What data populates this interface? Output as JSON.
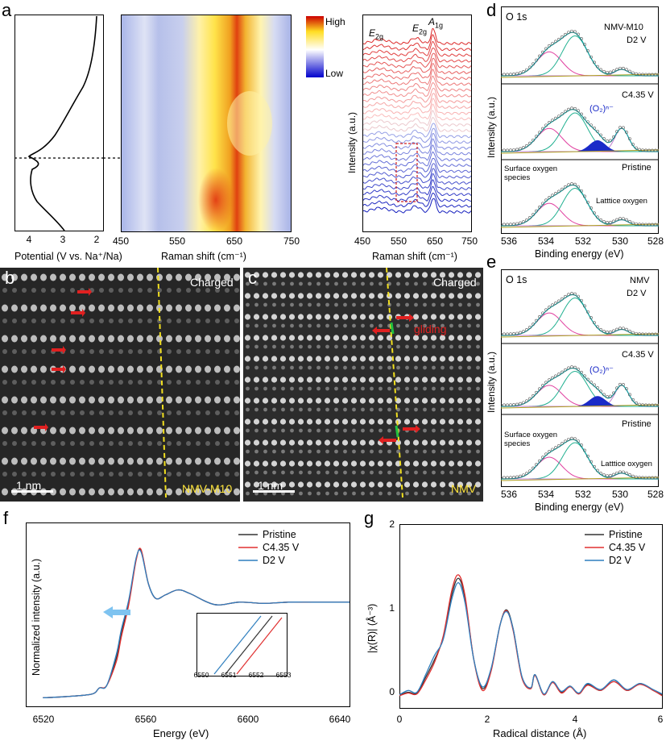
{
  "panel_labels": {
    "a": "a",
    "b": "b",
    "c": "c",
    "d": "d",
    "e": "e",
    "f": "f",
    "g": "g"
  },
  "panel_a": {
    "potential_axis": {
      "label": "Potential (V vs. Na⁺/Na)",
      "ticks": [
        "4",
        "3",
        "2"
      ]
    },
    "map_axis": {
      "label": "Raman shift (cm⁻¹)",
      "ticks": [
        "450",
        "550",
        "650",
        "750"
      ]
    },
    "colorbar": {
      "high": "High",
      "low": "Low",
      "colors": [
        "#cc0000",
        "#ffff33",
        "#ffffff",
        "#0000cc"
      ]
    },
    "raman_axis": {
      "label": "Raman shift (cm⁻¹)",
      "ticks": [
        "450",
        "550",
        "650",
        "750"
      ],
      "ylabel": "Intensity (a.u.)"
    },
    "peaks": [
      {
        "sym": "E",
        "sub": "2g"
      },
      {
        "sym": "E",
        "sub": "2g"
      },
      {
        "sym": "A",
        "sub": "1g"
      }
    ]
  },
  "panel_b": {
    "status": "Charged",
    "scale": "1 nm",
    "sample": "NMV-M10"
  },
  "panel_c": {
    "status": "Charged",
    "scale": "1 nm",
    "sample": "NMV",
    "annotation": "gliding"
  },
  "panel_d": {
    "title": "O 1s",
    "ylabel": "Intensity (a.u.)",
    "xlabel": "Binding energy (eV)",
    "ticks": [
      "536",
      "534",
      "532",
      "530",
      "528"
    ],
    "sample": "NMV-M10",
    "rows": [
      {
        "label": "D2 V"
      },
      {
        "label": "C4.35 V",
        "peak": "(O₂)ⁿ⁻"
      },
      {
        "label": "Pristine",
        "surface": "Surface oxygen species",
        "lattice": "Latttice oxygen"
      }
    ]
  },
  "panel_e": {
    "title": "O 1s",
    "ylabel": "Intensity (a.u.)",
    "xlabel": "Binding energy (eV)",
    "ticks": [
      "536",
      "534",
      "532",
      "530",
      "528"
    ],
    "sample": "NMV",
    "rows": [
      {
        "label": "D2 V"
      },
      {
        "label": "C4.35 V",
        "peak": "(O₂)ⁿ⁻"
      },
      {
        "label": "Pristine",
        "surface": "Surface oxygen species",
        "lattice": "Latttice oxygen"
      }
    ]
  },
  "panel_f": {
    "xlabel": "Energy (eV)",
    "ylabel": "Normalized intensity (a.u.)",
    "xticks": [
      "6520",
      "6560",
      "6600",
      "6640"
    ],
    "inset_ticks": [
      "6550",
      "6551",
      "6552",
      "6553"
    ],
    "legend": [
      {
        "name": "Pristine",
        "color": "#333333"
      },
      {
        "name": "C4.35 V",
        "color": "#e03030"
      },
      {
        "name": "D2 V",
        "color": "#2f7fbf"
      }
    ]
  },
  "chart_data": [
    {
      "type": "line",
      "title": "f",
      "xlabel": "Energy (eV)",
      "ylabel": "Normalized intensity (a.u.)",
      "xlim": [
        6520,
        6645
      ],
      "series": [
        {
          "name": "Pristine",
          "x": [
            6520,
            6530,
            6540,
            6543,
            6546,
            6550,
            6552,
            6555,
            6558,
            6560,
            6563,
            6566,
            6570,
            6575,
            6580,
            6590,
            6600,
            6610,
            6620,
            6630,
            6645
          ],
          "values": [
            0.02,
            0.03,
            0.05,
            0.1,
            0.12,
            0.35,
            0.55,
            0.8,
            1.15,
            1.22,
            0.95,
            0.83,
            0.86,
            0.9,
            0.87,
            0.78,
            0.8,
            0.79,
            0.8,
            0.8,
            0.8
          ]
        },
        {
          "name": "C4.35 V",
          "x": [
            6520,
            6530,
            6540,
            6543,
            6546,
            6550,
            6552,
            6555,
            6558,
            6560,
            6563,
            6566,
            6570,
            6575,
            6580,
            6590,
            6600,
            6610,
            6620,
            6630,
            6645
          ],
          "values": [
            0.02,
            0.03,
            0.05,
            0.1,
            0.12,
            0.32,
            0.52,
            0.78,
            1.14,
            1.23,
            0.95,
            0.83,
            0.86,
            0.9,
            0.87,
            0.78,
            0.8,
            0.79,
            0.8,
            0.8,
            0.8
          ]
        },
        {
          "name": "D2 V",
          "x": [
            6520,
            6530,
            6540,
            6543,
            6546,
            6550,
            6552,
            6555,
            6558,
            6560,
            6563,
            6566,
            6570,
            6575,
            6580,
            6590,
            6600,
            6610,
            6620,
            6630,
            6645
          ],
          "values": [
            0.02,
            0.03,
            0.05,
            0.1,
            0.12,
            0.38,
            0.58,
            0.82,
            1.16,
            1.21,
            0.95,
            0.83,
            0.86,
            0.9,
            0.87,
            0.78,
            0.8,
            0.79,
            0.8,
            0.8,
            0.8
          ]
        }
      ]
    },
    {
      "type": "line",
      "title": "g",
      "xlabel": "Radical distance (Å)",
      "ylabel": "|χ(R)| (Å⁻³)",
      "xlim": [
        0,
        6
      ],
      "ylim": [
        -0.1,
        2
      ],
      "xticks": [
        "0",
        "2",
        "4",
        "6"
      ],
      "yticks": [
        "0",
        "1",
        "2"
      ],
      "series": [
        {
          "name": "Pristine",
          "x": [
            0,
            0.2,
            0.4,
            0.6,
            0.8,
            1.0,
            1.2,
            1.35,
            1.5,
            1.7,
            1.9,
            2.1,
            2.3,
            2.45,
            2.6,
            2.8,
            3.0,
            3.1,
            3.3,
            3.5,
            3.7,
            3.9,
            4.1,
            4.3,
            4.6,
            4.9,
            5.2,
            5.5,
            5.8,
            6.0
          ],
          "values": [
            0.05,
            0.08,
            0.07,
            0.25,
            0.45,
            0.7,
            1.2,
            1.38,
            1.15,
            0.45,
            0.12,
            0.35,
            0.85,
            1.02,
            0.8,
            0.25,
            0.12,
            0.28,
            0.05,
            0.2,
            0.08,
            0.15,
            0.06,
            0.17,
            0.1,
            0.22,
            0.1,
            0.18,
            0.1,
            0.05
          ]
        },
        {
          "name": "C4.35 V",
          "x": [
            0,
            0.2,
            0.4,
            0.6,
            0.8,
            1.0,
            1.2,
            1.35,
            1.5,
            1.7,
            1.9,
            2.1,
            2.3,
            2.45,
            2.6,
            2.8,
            3.0,
            3.1,
            3.3,
            3.5,
            3.7,
            3.9,
            4.1,
            4.3,
            4.6,
            4.9,
            5.2,
            5.5,
            5.8,
            6.0
          ],
          "values": [
            0.04,
            0.07,
            0.06,
            0.22,
            0.42,
            0.72,
            1.25,
            1.42,
            1.18,
            0.45,
            0.1,
            0.33,
            0.85,
            1.01,
            0.78,
            0.24,
            0.12,
            0.27,
            0.05,
            0.19,
            0.07,
            0.14,
            0.06,
            0.16,
            0.1,
            0.2,
            0.1,
            0.17,
            0.1,
            0.04
          ]
        },
        {
          "name": "D2 V",
          "x": [
            0,
            0.2,
            0.4,
            0.6,
            0.8,
            1.0,
            1.2,
            1.35,
            1.5,
            1.7,
            1.9,
            2.1,
            2.3,
            2.45,
            2.6,
            2.8,
            3.0,
            3.1,
            3.3,
            3.5,
            3.7,
            3.9,
            4.1,
            4.3,
            4.6,
            4.9,
            5.2,
            5.5,
            5.8,
            6.0
          ],
          "values": [
            0.05,
            0.1,
            0.08,
            0.28,
            0.5,
            0.68,
            1.15,
            1.33,
            1.1,
            0.45,
            0.14,
            0.36,
            0.85,
            1.0,
            0.8,
            0.26,
            0.13,
            0.28,
            0.06,
            0.2,
            0.09,
            0.15,
            0.07,
            0.18,
            0.11,
            0.22,
            0.11,
            0.18,
            0.11,
            0.06
          ]
        }
      ],
      "legend": [
        {
          "name": "Pristine",
          "color": "#333333"
        },
        {
          "name": "C4.35 V",
          "color": "#e03030"
        },
        {
          "name": "D2 V",
          "color": "#2f7fbf"
        }
      ]
    }
  ]
}
